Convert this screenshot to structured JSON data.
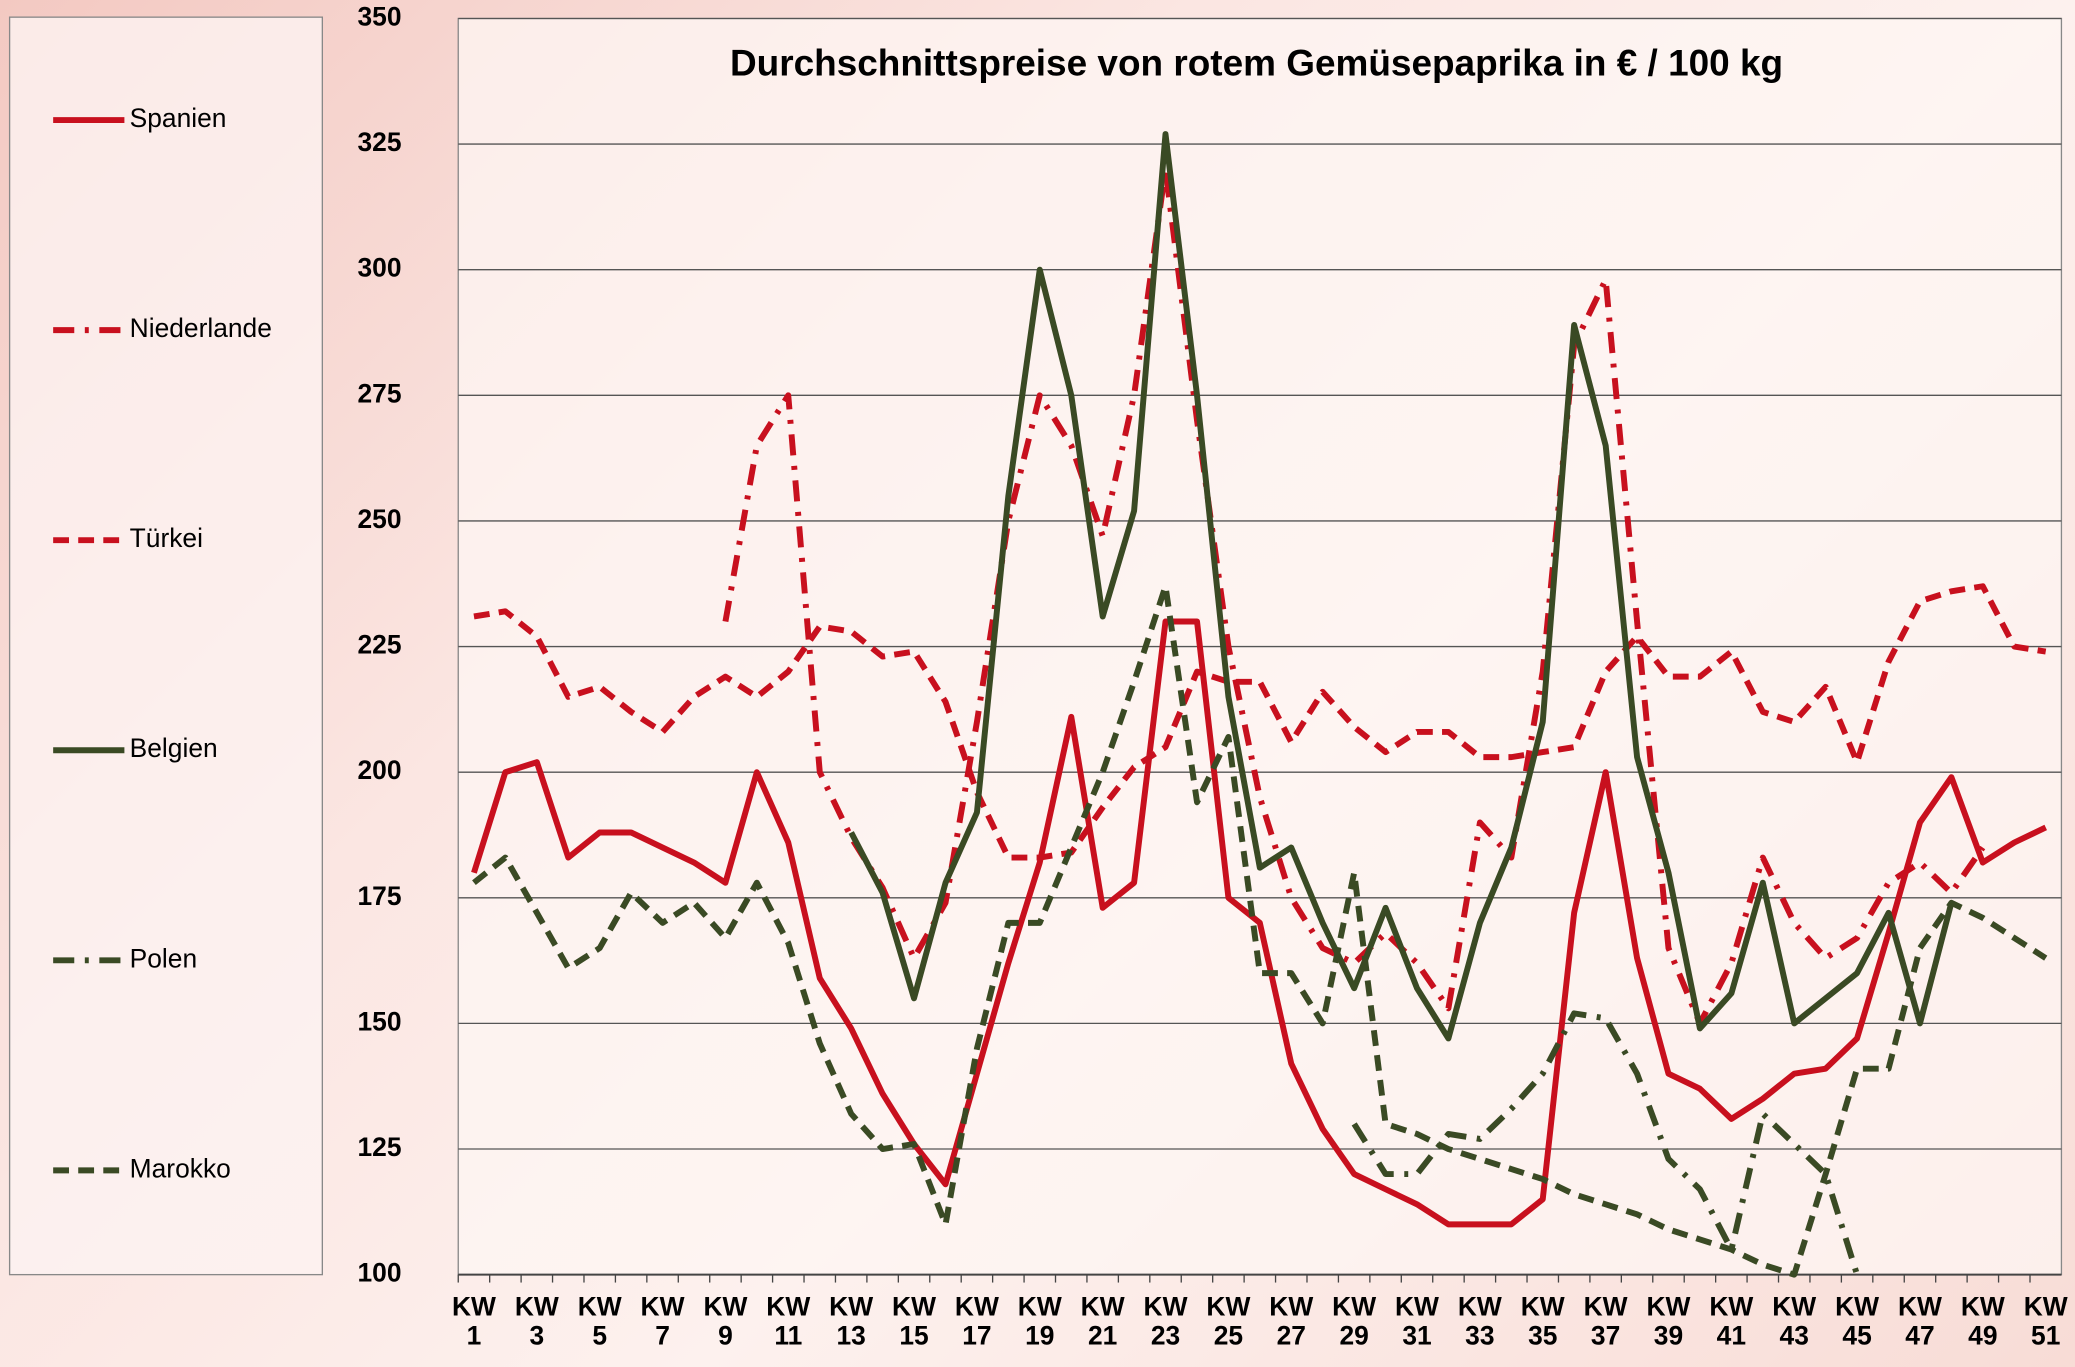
{
  "chart_data": {
    "type": "line",
    "title": "Durchschnittspreise von rotem Gemüsepaprika in € / 100 kg",
    "categories": [
      "KW 1",
      null,
      "KW 3",
      null,
      "KW 5",
      null,
      "KW 7",
      null,
      "KW 9",
      null,
      "KW 11",
      null,
      "KW 13",
      null,
      "KW 15",
      null,
      "KW 17",
      null,
      "KW 19",
      null,
      "KW 21",
      null,
      "KW 23",
      null,
      "KW 25",
      null,
      "KW 27",
      null,
      "KW 29",
      null,
      "KW 31",
      null,
      "KW 33",
      null,
      "KW 35",
      null,
      "KW 37",
      null,
      "KW 39",
      null,
      "KW 41",
      null,
      "KW 43",
      null,
      "KW 45",
      null,
      "KW 47",
      null,
      "KW 49",
      null,
      "KW 51"
    ],
    "ylim": [
      100,
      350
    ],
    "yticks": [
      100,
      125,
      150,
      175,
      200,
      225,
      250,
      275,
      300,
      325,
      350
    ],
    "grid": true,
    "legend": "left",
    "series": [
      {
        "name": "Spanien",
        "color": "#c8101e",
        "style": "solid",
        "values": [
          180,
          200,
          202,
          183,
          188,
          188,
          185,
          182,
          178,
          200,
          186,
          159,
          149,
          136,
          126,
          118,
          140,
          162,
          182,
          211,
          173,
          178,
          230,
          230,
          175,
          170,
          142,
          129,
          120,
          117,
          114,
          110,
          110,
          110,
          115,
          172,
          200,
          163,
          140,
          137,
          131,
          135,
          140,
          141,
          147,
          168,
          190,
          199,
          182,
          186,
          189
        ]
      },
      {
        "name": "Niederlande",
        "color": "#c8101e",
        "style": "dashdot",
        "values": [
          null,
          null,
          null,
          null,
          null,
          null,
          null,
          null,
          230,
          265,
          275,
          200,
          187,
          177,
          163,
          174,
          210,
          250,
          275,
          265,
          247,
          275,
          320,
          270,
          225,
          195,
          175,
          165,
          162,
          168,
          162,
          153,
          190,
          183,
          220,
          285,
          298,
          230,
          165,
          150,
          162,
          183,
          170,
          163,
          167,
          178,
          182,
          176,
          185,
          null,
          null
        ]
      },
      {
        "name": "Türkei",
        "color": "#c8101e",
        "style": "dash",
        "values": [
          231,
          232,
          227,
          215,
          217,
          212,
          208,
          215,
          219,
          215,
          220,
          229,
          228,
          223,
          224,
          214,
          196,
          183,
          183,
          184,
          193,
          201,
          205,
          220,
          218,
          218,
          206,
          216,
          209,
          204,
          208,
          208,
          203,
          203,
          204,
          205,
          220,
          227,
          219,
          219,
          224,
          212,
          210,
          217,
          202,
          222,
          234,
          236,
          237,
          225,
          224
        ]
      },
      {
        "name": "Belgien",
        "color": "#3a4a24",
        "style": "solid",
        "values": [
          null,
          null,
          null,
          null,
          null,
          null,
          null,
          null,
          null,
          null,
          null,
          null,
          188,
          176,
          155,
          178,
          192,
          255,
          300,
          275,
          231,
          252,
          327,
          275,
          215,
          181,
          185,
          170,
          157,
          173,
          157,
          147,
          170,
          185,
          210,
          289,
          265,
          203,
          180,
          149,
          156,
          178,
          150,
          155,
          160,
          172,
          150,
          174,
          null,
          null,
          null
        ]
      },
      {
        "name": "Polen",
        "color": "#3a4a24",
        "style": "dashdot",
        "values": [
          null,
          null,
          null,
          null,
          null,
          null,
          null,
          null,
          null,
          null,
          null,
          null,
          null,
          null,
          null,
          null,
          null,
          null,
          null,
          null,
          null,
          null,
          null,
          null,
          null,
          null,
          null,
          null,
          130,
          120,
          120,
          128,
          127,
          133,
          140,
          152,
          151,
          140,
          123,
          117,
          105,
          132,
          126,
          120,
          100,
          null,
          null,
          null,
          null,
          null,
          null
        ]
      },
      {
        "name": "Marokko",
        "color": "#3a4a24",
        "style": "dash",
        "values": [
          178,
          183,
          172,
          161,
          165,
          176,
          170,
          174,
          167,
          178,
          166,
          146,
          132,
          125,
          126,
          110,
          145,
          170,
          170,
          185,
          200,
          218,
          237,
          194,
          207,
          160,
          160,
          150,
          180,
          130,
          128,
          125,
          123,
          121,
          119,
          116,
          114,
          112,
          109,
          107,
          105,
          102,
          100,
          120,
          141,
          141,
          165,
          174,
          171,
          167,
          163
        ]
      }
    ]
  }
}
